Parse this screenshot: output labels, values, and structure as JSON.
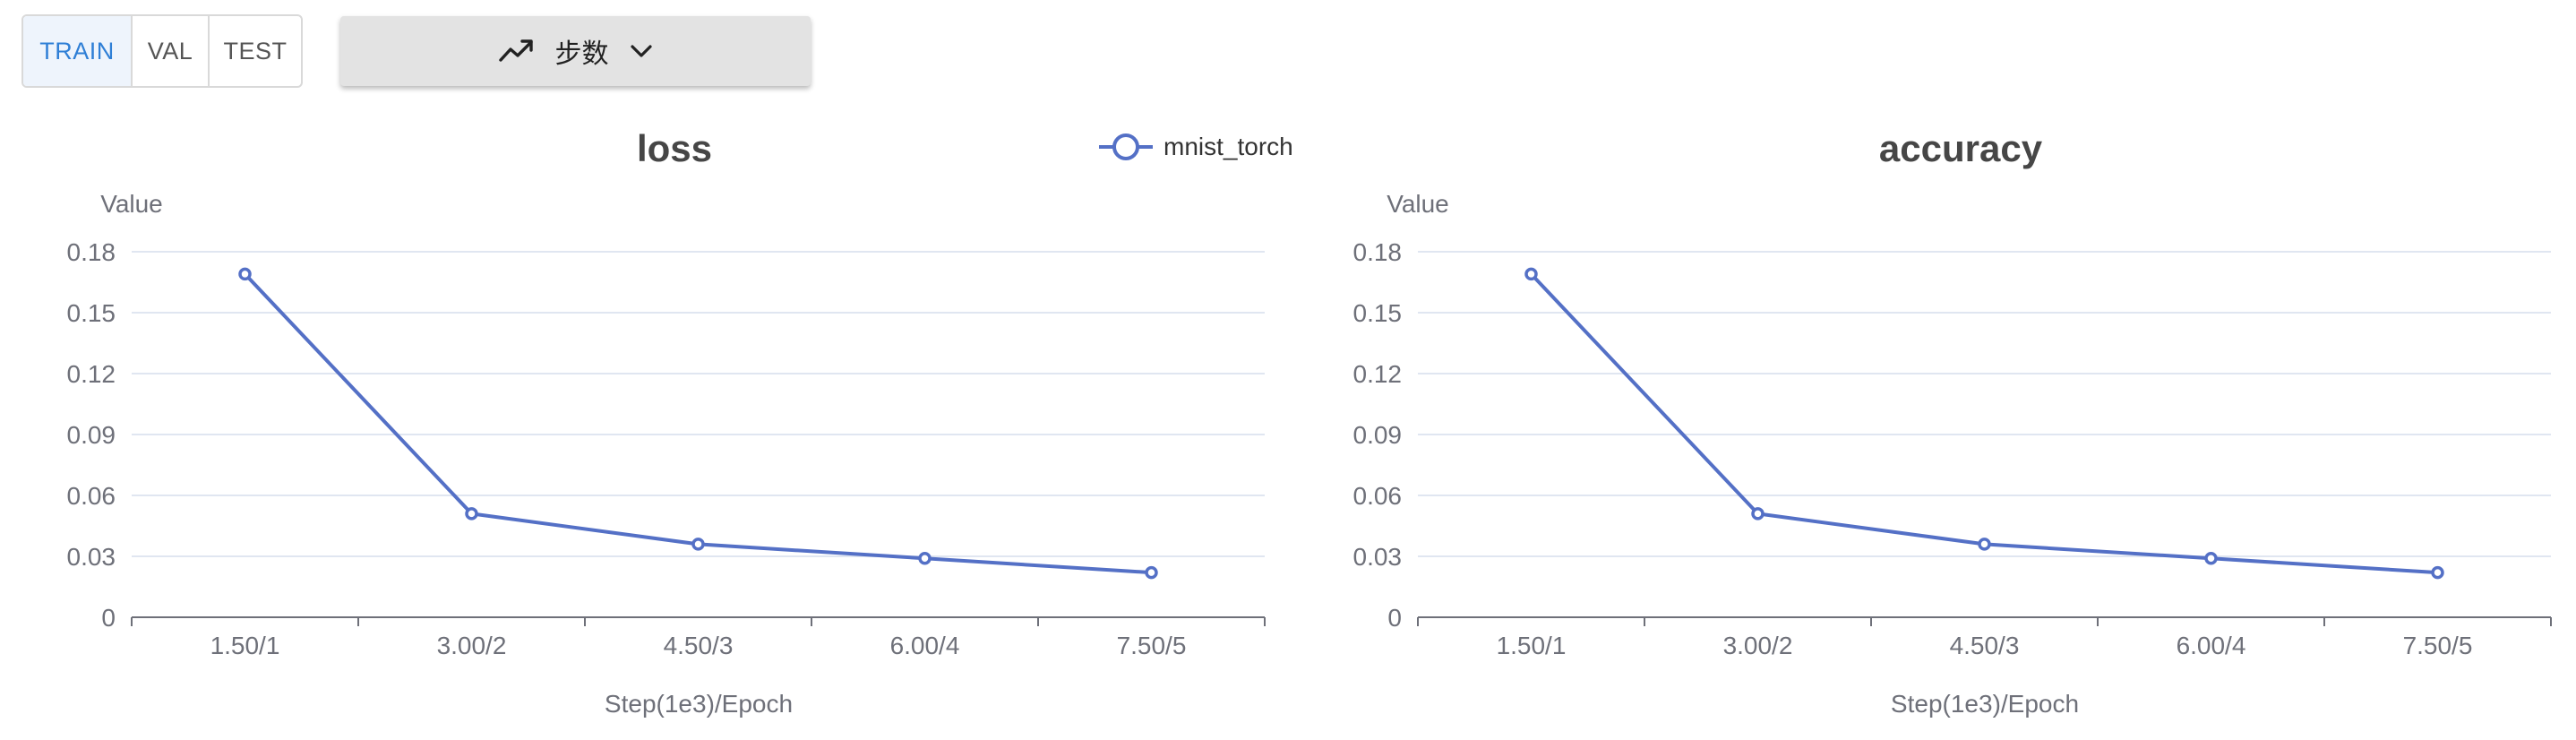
{
  "toolbar": {
    "split_tabs": [
      {
        "label": "TRAIN",
        "active": true
      },
      {
        "label": "VAL",
        "active": false
      },
      {
        "label": "TEST",
        "active": false
      }
    ],
    "xaxis_dropdown": {
      "icon": "trending-up-icon",
      "label": "步数",
      "chevron": "chevron-down-icon"
    }
  },
  "colors": {
    "series": "#5470c6",
    "active_tab_text": "#2f7fd6",
    "active_tab_bg": "#eef4fc"
  },
  "legend": {
    "entries": [
      "mnist_torch"
    ],
    "placement": "top-center"
  },
  "chart_data": [
    {
      "type": "line",
      "title": "loss",
      "ylabel": "Value",
      "xlabel": "Step(1e3)/Epoch",
      "categories": [
        "1.50/1",
        "3.00/2",
        "4.50/3",
        "6.00/4",
        "7.50/5"
      ],
      "ylim": [
        0,
        0.18
      ],
      "yticks": [
        "0",
        "0.03",
        "0.06",
        "0.09",
        "0.12",
        "0.15",
        "0.18"
      ],
      "grid": true,
      "series": [
        {
          "name": "mnist_torch",
          "values": [
            0.169,
            0.051,
            0.036,
            0.029,
            0.022
          ]
        }
      ]
    },
    {
      "type": "line",
      "title": "accuracy",
      "ylabel": "Value",
      "xlabel": "Step(1e3)/Epoch",
      "categories": [
        "1.50/1",
        "3.00/2",
        "4.50/3",
        "6.00/4",
        "7.50/5"
      ],
      "ylim": [
        0,
        0.18
      ],
      "yticks": [
        "0",
        "0.03",
        "0.06",
        "0.09",
        "0.12",
        "0.15",
        "0.18"
      ],
      "grid": true,
      "series": [
        {
          "name": "mnist_torch",
          "values": [
            0.169,
            0.051,
            0.036,
            0.029,
            0.022
          ]
        }
      ]
    }
  ]
}
